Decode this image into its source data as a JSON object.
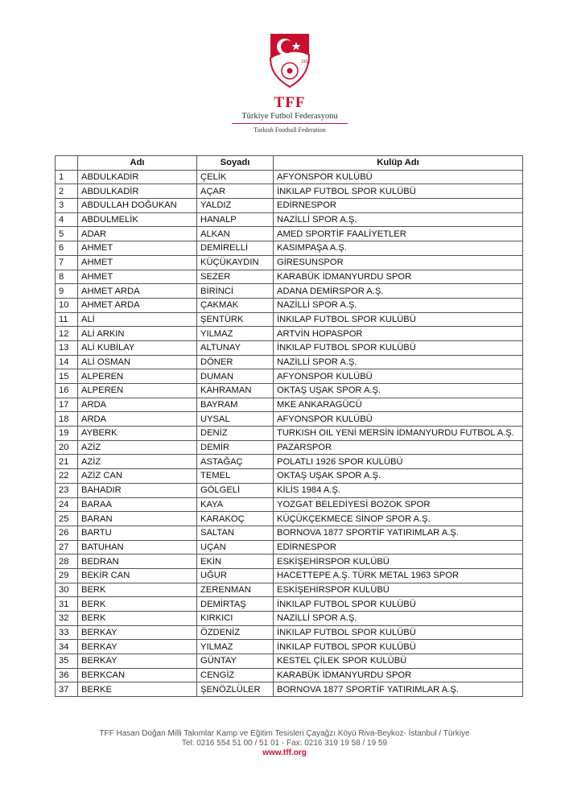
{
  "header": {
    "logo_year": "1923",
    "abbr": "TFF",
    "name_tr": "Türkiye Futbol Federasyonu",
    "name_en": "Turkish Football Federation",
    "brand_color": "#c8102e"
  },
  "table": {
    "columns": [
      "",
      "Adı",
      "Soyadı",
      "Kulüp Adı"
    ],
    "rows": [
      [
        "1",
        "ABDULKADİR",
        "ÇELİK",
        "AFYONSPOR KULÜBÜ"
      ],
      [
        "2",
        "ABDULKADİR",
        "AÇAR",
        "İNKILAP FUTBOL SPOR KULÜBÜ"
      ],
      [
        "3",
        "ABDULLAH DOĞUKAN",
        "YALDIZ",
        "EDİRNESPOR"
      ],
      [
        "4",
        "ABDULMELİK",
        "HANALP",
        "NAZİLLİ SPOR A.Ş."
      ],
      [
        "5",
        "ADAR",
        "ALKAN",
        "AMED SPORTİF FAALİYETLER"
      ],
      [
        "6",
        "AHMET",
        "DEMİRELLİ",
        "KASIMPAŞA A.Ş."
      ],
      [
        "7",
        "AHMET",
        "KÜÇÜKAYDIN",
        "GİRESUNSPOR"
      ],
      [
        "8",
        "AHMET",
        "SEZER",
        "KARABÜK İDMANYURDU SPOR"
      ],
      [
        "9",
        "AHMET ARDA",
        "BİRİNCİ",
        "ADANA DEMİRSPOR A.Ş."
      ],
      [
        "10",
        "AHMET ARDA",
        "ÇAKMAK",
        "NAZİLLİ SPOR A.Ş."
      ],
      [
        "11",
        "ALİ",
        "ŞENTÜRK",
        "İNKILAP FUTBOL SPOR KULÜBÜ"
      ],
      [
        "12",
        "ALİ ARKIN",
        "YILMAZ",
        "ARTVİN HOPASPOR"
      ],
      [
        "13",
        "ALİ KUBİLAY",
        "ALTUNAY",
        "İNKILAP FUTBOL SPOR KULÜBÜ"
      ],
      [
        "14",
        "ALİ OSMAN",
        "DÖNER",
        "NAZİLLİ SPOR A.Ş."
      ],
      [
        "15",
        "ALPEREN",
        "DUMAN",
        "AFYONSPOR KULÜBÜ"
      ],
      [
        "16",
        "ALPEREN",
        "KAHRAMAN",
        "OKTAŞ UŞAK SPOR A.Ş."
      ],
      [
        "17",
        "ARDA",
        "BAYRAM",
        "MKE ANKARAGÜCÜ"
      ],
      [
        "18",
        "ARDA",
        "UYSAL",
        "AFYONSPOR KULÜBÜ"
      ],
      [
        "19",
        "AYBERK",
        "DENİZ",
        "TURKISH OIL YENİ MERSİN İDMANYURDU FUTBOL A.Ş."
      ],
      [
        "20",
        "AZİZ",
        "DEMİR",
        "PAZARSPOR"
      ],
      [
        "21",
        "AZİZ",
        "ASTAĞAÇ",
        "POLATLI 1926 SPOR KULÜBÜ"
      ],
      [
        "22",
        "AZİZ CAN",
        "TEMEL",
        "OKTAŞ UŞAK SPOR A.Ş."
      ],
      [
        "23",
        "BAHADIR",
        "GÖLGELİ",
        "KİLİS 1984 A.Ş."
      ],
      [
        "24",
        "BARAA",
        "KAYA",
        "YOZGAT BELEDİYESİ BOZOK SPOR"
      ],
      [
        "25",
        "BARAN",
        "KARAKOÇ",
        "KÜÇÜKÇEKMECE SİNOP SPOR A.Ş."
      ],
      [
        "26",
        "BARTU",
        "SALTAN",
        "BORNOVA 1877 SPORTİF YATIRIMLAR A.Ş."
      ],
      [
        "27",
        "BATUHAN",
        "UÇAN",
        "EDİRNESPOR"
      ],
      [
        "28",
        "BEDRAN",
        "EKİN",
        "ESKİŞEHİRSPOR KULÜBÜ"
      ],
      [
        "29",
        "BEKİR CAN",
        "UĞUR",
        "HACETTEPE A.Ş. TÜRK METAL 1963 SPOR"
      ],
      [
        "30",
        "BERK",
        "ZERENMAN",
        "ESKİŞEHİRSPOR KULÜBÜ"
      ],
      [
        "31",
        "BERK",
        "DEMİRTAŞ",
        "İNKILAP FUTBOL SPOR KULÜBÜ"
      ],
      [
        "32",
        "BERK",
        "KIRKICI",
        "NAZİLLİ SPOR A.Ş."
      ],
      [
        "33",
        "BERKAY",
        "ÖZDENİZ",
        "İNKILAP FUTBOL SPOR KULÜBÜ"
      ],
      [
        "34",
        "BERKAY",
        "YILMAZ",
        "İNKILAP FUTBOL SPOR KULÜBÜ"
      ],
      [
        "35",
        "BERKAY",
        "GÜNTAY",
        "KESTEL ÇİLEK SPOR KULÜBÜ"
      ],
      [
        "36",
        "BERKCAN",
        "CENGİZ",
        "KARABÜK İDMANYURDU SPOR"
      ],
      [
        "37",
        "BERKE",
        "ŞENÖZLÜLER",
        "BORNOVA 1877 SPORTİF YATIRIMLAR A.Ş."
      ]
    ]
  },
  "footer": {
    "address": "TFF Hasan Doğan Milli Takımlar Kamp ve Eğitim Tesisleri Çayağzı Köyü Riva-Beykoz- İstanbul / Türkiye",
    "phone": "Tel: 0216 554 51 00 / 51 01 - Fax: 0216 319 19 58 / 19 59",
    "website": "www.tff.org"
  }
}
